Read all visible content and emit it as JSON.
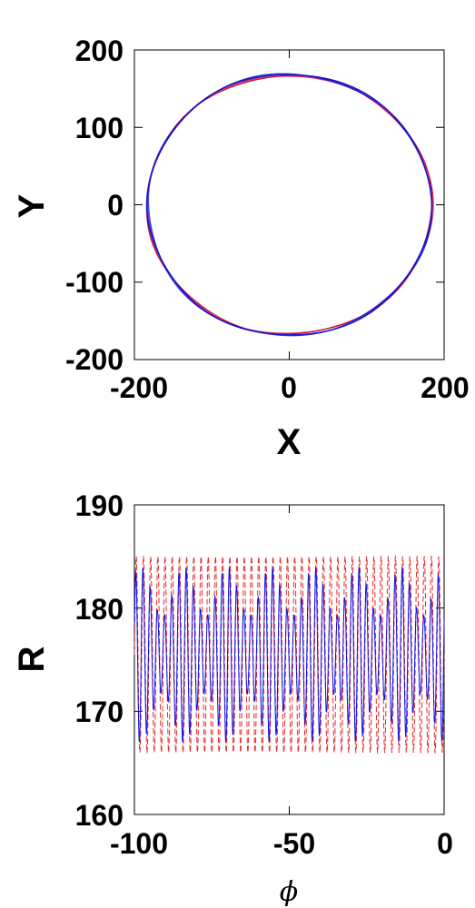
{
  "chart_data": [
    {
      "type": "line",
      "title": "",
      "xlabel": "X",
      "ylabel": "Y",
      "xlim": [
        -200,
        200
      ],
      "ylim": [
        -200,
        200
      ],
      "xticks": [
        "-200",
        "0",
        "200"
      ],
      "yticks": [
        "-200",
        "-100",
        "0",
        "100",
        "200"
      ],
      "grid": false,
      "legend": "none",
      "series": [
        {
          "shape": "closed-orbit",
          "center": [
            0,
            0
          ],
          "rx": 184,
          "ry": 167,
          "color": "#d0103a"
        },
        {
          "shape": "closed-orbit",
          "center": [
            0,
            0
          ],
          "rx": 183,
          "ry": 169,
          "color": "#1414d2"
        }
      ]
    },
    {
      "type": "line",
      "title": "",
      "xlabel": "ϕ",
      "ylabel": "R",
      "xlim": [
        -100,
        0
      ],
      "ylim": [
        160,
        190
      ],
      "xticks": [
        "-100",
        "-50",
        "0"
      ],
      "yticks": [
        "160",
        "170",
        "180",
        "190"
      ],
      "grid": false,
      "legend": "none",
      "series": [
        {
          "style": "dashed",
          "color": "#e8282a",
          "mean": 175.5,
          "amplitude": 9.5,
          "oscillations": 43
        },
        {
          "style": "solid",
          "color": "#1414e0",
          "mean": 175.5,
          "amplitude": 8.5,
          "oscillations": 43,
          "envelope_period": 14
        }
      ]
    }
  ]
}
